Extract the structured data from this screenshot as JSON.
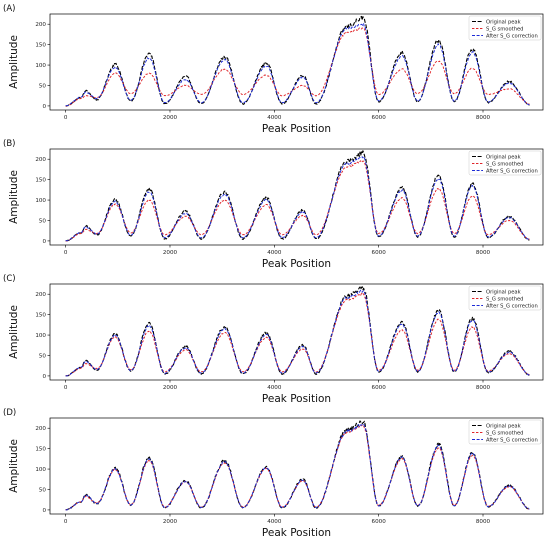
{
  "figure": {
    "panel_count": 4
  },
  "style": {
    "original_color": "#000000",
    "smoothed_color": "#e0252a",
    "corrected_color": "#1d2bd6",
    "axis_color": "#000000",
    "legend_border": "#cccccc"
  },
  "chart_data": [
    {
      "type": "line",
      "panel_label": "(A)",
      "xlabel": "Peak Position",
      "ylabel": "Amplitude",
      "xlim": [
        -300,
        9150
      ],
      "ylim": [
        -10,
        225
      ],
      "xticks": [
        0,
        2000,
        4000,
        6000,
        8000
      ],
      "xtick_labels": [
        "0",
        "2000",
        "4000",
        "6000",
        "8000"
      ],
      "yticks": [
        0,
        50,
        100,
        150,
        200
      ],
      "ytick_labels": [
        "0",
        "50",
        "100",
        "150",
        "200"
      ],
      "legend": {
        "placement": "top-right",
        "entries": [
          "Original peak",
          "S_G smoothed",
          "After S_G correction"
        ]
      },
      "x": [
        0,
        300,
        380,
        600,
        950,
        1250,
        1600,
        1900,
        2300,
        2600,
        3050,
        3400,
        3850,
        4150,
        4550,
        4800,
        5400,
        5700,
        6000,
        6450,
        6750,
        7150,
        7450,
        7800,
        8100,
        8500,
        8900
      ],
      "series": [
        {
          "name": "Original peak",
          "values": [
            0,
            20,
            37,
            15,
            102,
            12,
            128,
            5,
            72,
            5,
            120,
            5,
            105,
            5,
            75,
            5,
            195,
            215,
            10,
            130,
            10,
            160,
            10,
            140,
            8,
            60,
            2
          ]
        },
        {
          "name": "S_G smoothed",
          "values": [
            0,
            18,
            25,
            20,
            80,
            30,
            80,
            25,
            50,
            28,
            90,
            28,
            75,
            25,
            50,
            25,
            180,
            190,
            28,
            90,
            30,
            110,
            30,
            92,
            28,
            42,
            5
          ]
        },
        {
          "name": "After S_G correction",
          "values": [
            0,
            22,
            33,
            18,
            95,
            14,
            118,
            8,
            65,
            8,
            113,
            8,
            98,
            8,
            70,
            8,
            190,
            200,
            12,
            122,
            12,
            150,
            12,
            132,
            10,
            56,
            3
          ]
        }
      ]
    },
    {
      "type": "line",
      "panel_label": "(B)",
      "xlabel": "Peak Position",
      "ylabel": "Amplitude",
      "xlim": [
        -300,
        9150
      ],
      "ylim": [
        -10,
        225
      ],
      "xticks": [
        0,
        2000,
        4000,
        6000,
        8000
      ],
      "xtick_labels": [
        "0",
        "2000",
        "4000",
        "6000",
        "8000"
      ],
      "yticks": [
        0,
        50,
        100,
        150,
        200
      ],
      "ytick_labels": [
        "0",
        "50",
        "100",
        "150",
        "200"
      ],
      "legend": {
        "placement": "top-right",
        "entries": [
          "Original peak",
          "S_G smoothed",
          "After S_G correction"
        ]
      },
      "x": [
        0,
        300,
        380,
        600,
        950,
        1250,
        1600,
        1900,
        2300,
        2600,
        3050,
        3400,
        3850,
        4150,
        4550,
        4800,
        5400,
        5700,
        6000,
        6450,
        6750,
        7150,
        7450,
        7800,
        8100,
        8500,
        8900
      ],
      "series": [
        {
          "name": "Original peak",
          "values": [
            0,
            20,
            37,
            15,
            102,
            12,
            128,
            5,
            72,
            5,
            120,
            5,
            105,
            5,
            75,
            5,
            195,
            215,
            10,
            130,
            10,
            160,
            10,
            140,
            8,
            60,
            2
          ]
        },
        {
          "name": "S_G smoothed",
          "values": [
            0,
            18,
            28,
            18,
            90,
            20,
            100,
            15,
            60,
            15,
            100,
            15,
            88,
            15,
            62,
            15,
            182,
            195,
            18,
            105,
            18,
            128,
            18,
            110,
            15,
            50,
            4
          ]
        },
        {
          "name": "After S_G correction",
          "values": [
            0,
            21,
            34,
            17,
            97,
            14,
            120,
            8,
            67,
            8,
            114,
            8,
            100,
            8,
            71,
            8,
            190,
            205,
            12,
            124,
            12,
            152,
            12,
            134,
            10,
            57,
            3
          ]
        }
      ]
    },
    {
      "type": "line",
      "panel_label": "(C)",
      "xlabel": "Peak Position",
      "ylabel": "Amplitude",
      "xlim": [
        -300,
        9150
      ],
      "ylim": [
        -10,
        225
      ],
      "xticks": [
        0,
        2000,
        4000,
        6000,
        8000
      ],
      "xtick_labels": [
        "0",
        "2000",
        "4000",
        "6000",
        "8000"
      ],
      "yticks": [
        0,
        50,
        100,
        150,
        200
      ],
      "ytick_labels": [
        "0",
        "50",
        "100",
        "150",
        "200"
      ],
      "legend": {
        "placement": "top-right",
        "entries": [
          "Original peak",
          "S_G smoothed",
          "After S_G correction"
        ]
      },
      "x": [
        0,
        300,
        380,
        600,
        950,
        1250,
        1600,
        1900,
        2300,
        2600,
        3050,
        3400,
        3850,
        4150,
        4550,
        4800,
        5400,
        5700,
        6000,
        6450,
        6750,
        7150,
        7450,
        7800,
        8100,
        8500,
        8900
      ],
      "series": [
        {
          "name": "Original peak",
          "values": [
            0,
            20,
            37,
            15,
            102,
            12,
            128,
            5,
            72,
            5,
            120,
            5,
            105,
            5,
            75,
            5,
            195,
            215,
            10,
            130,
            10,
            160,
            10,
            140,
            8,
            60,
            2
          ]
        },
        {
          "name": "S_G smoothed",
          "values": [
            0,
            19,
            30,
            18,
            95,
            15,
            110,
            10,
            64,
            10,
            106,
            10,
            94,
            10,
            66,
            10,
            186,
            200,
            14,
            112,
            14,
            138,
            14,
            120,
            12,
            54,
            3
          ]
        },
        {
          "name": "After S_G correction",
          "values": [
            0,
            21,
            35,
            16,
            99,
            13,
            123,
            7,
            69,
            7,
            116,
            7,
            101,
            7,
            72,
            7,
            192,
            208,
            11,
            126,
            11,
            155,
            11,
            136,
            9,
            58,
            2
          ]
        }
      ]
    },
    {
      "type": "line",
      "panel_label": "(D)",
      "xlabel": "Peak Position",
      "ylabel": "Amplitude",
      "xlim": [
        -300,
        9150
      ],
      "ylim": [
        -10,
        225
      ],
      "xticks": [
        0,
        2000,
        4000,
        6000,
        8000
      ],
      "xtick_labels": [
        "0",
        "2000",
        "4000",
        "6000",
        "8000"
      ],
      "yticks": [
        0,
        50,
        100,
        150,
        200
      ],
      "ytick_labels": [
        "0",
        "50",
        "100",
        "150",
        "200"
      ],
      "legend": {
        "placement": "top-right",
        "entries": [
          "Original peak",
          "S_G smoothed",
          "After S_G correction"
        ]
      },
      "x": [
        0,
        300,
        380,
        600,
        950,
        1250,
        1600,
        1900,
        2300,
        2600,
        3050,
        3400,
        3850,
        4150,
        4550,
        4800,
        5400,
        5700,
        6000,
        6450,
        6750,
        7150,
        7450,
        7800,
        8100,
        8500,
        8900
      ],
      "series": [
        {
          "name": "Original peak",
          "values": [
            0,
            20,
            37,
            15,
            102,
            12,
            128,
            5,
            72,
            5,
            120,
            5,
            105,
            5,
            75,
            5,
            195,
            215,
            10,
            130,
            10,
            160,
            10,
            140,
            8,
            60,
            2
          ]
        },
        {
          "name": "S_G smoothed",
          "values": [
            0,
            20,
            33,
            17,
            99,
            13,
            121,
            7,
            69,
            7,
            115,
            7,
            101,
            7,
            71,
            7,
            190,
            206,
            11,
            125,
            11,
            152,
            11,
            134,
            9,
            57,
            2
          ]
        },
        {
          "name": "After S_G correction",
          "values": [
            0,
            20,
            36,
            16,
            100,
            12,
            125,
            6,
            70,
            6,
            118,
            6,
            103,
            6,
            73,
            6,
            193,
            210,
            10,
            128,
            10,
            157,
            10,
            138,
            8,
            59,
            2
          ]
        }
      ]
    }
  ]
}
